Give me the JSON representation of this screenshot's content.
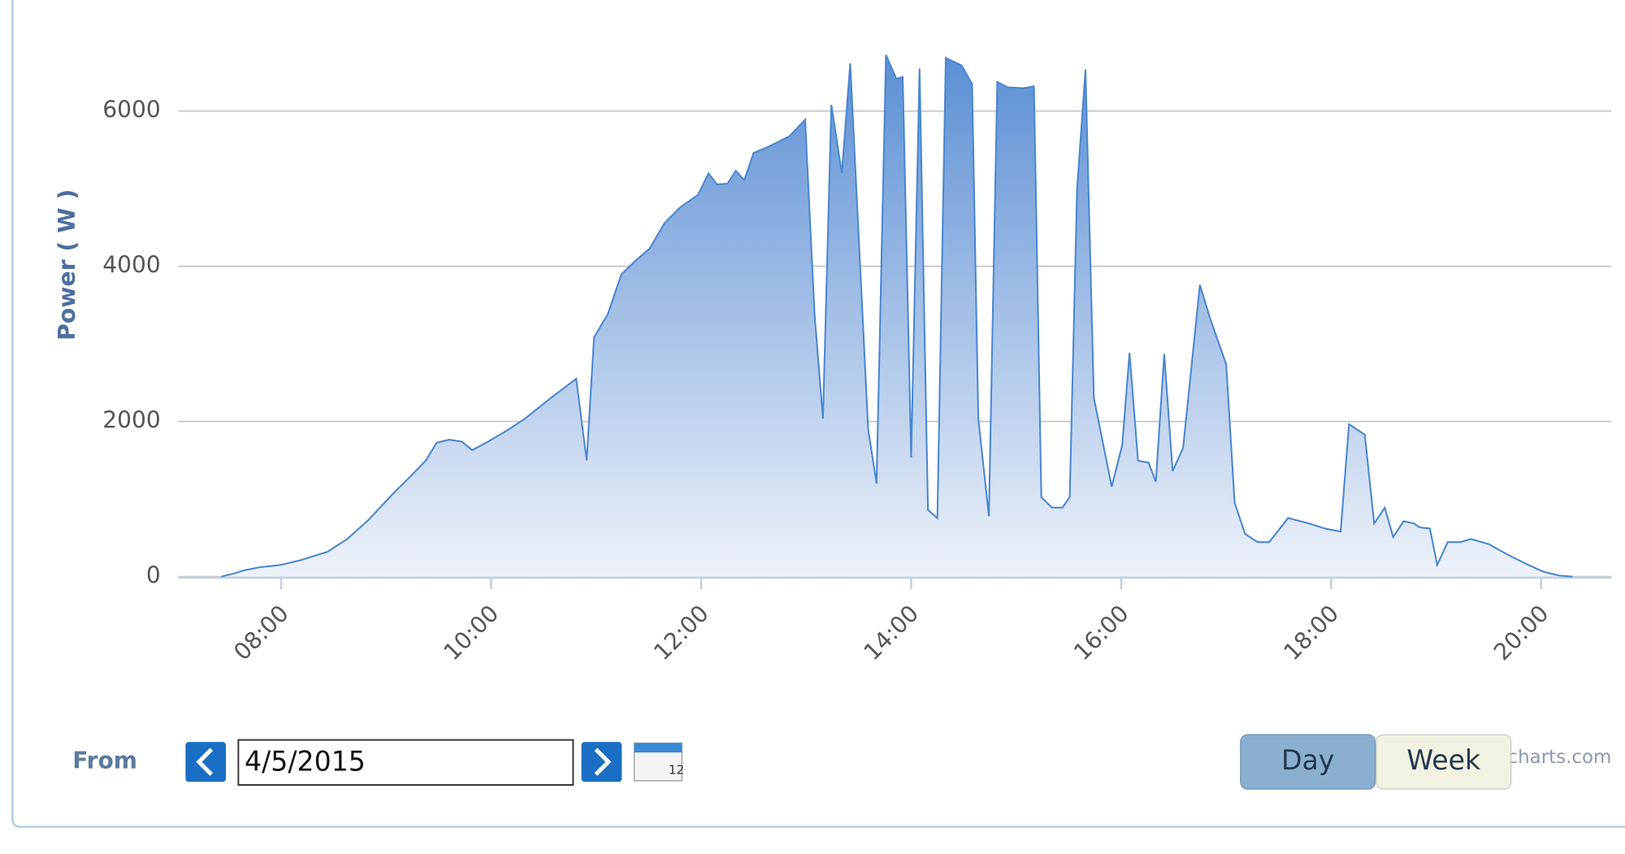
{
  "chart_data": {
    "type": "area",
    "ylabel": "Power ( W )",
    "x": [
      7.43,
      7.55,
      7.64,
      7.79,
      7.99,
      8.19,
      8.44,
      8.63,
      8.83,
      9.08,
      9.23,
      9.38,
      9.48,
      9.6,
      9.72,
      9.82,
      9.97,
      10.17,
      10.32,
      10.57,
      10.81,
      10.91,
      10.98,
      11.11,
      11.24,
      11.36,
      11.51,
      11.65,
      11.8,
      11.97,
      12.07,
      12.15,
      12.25,
      12.33,
      12.41,
      12.5,
      12.64,
      12.84,
      12.99,
      13.08,
      13.16,
      13.24,
      13.34,
      13.42,
      13.59,
      13.67,
      13.76,
      13.86,
      13.92,
      14.0,
      14.08,
      14.16,
      14.25,
      14.33,
      14.48,
      14.58,
      14.64,
      14.74,
      14.82,
      14.92,
      15.07,
      15.17,
      15.24,
      15.34,
      15.44,
      15.51,
      15.58,
      15.66,
      15.74,
      15.91,
      16.01,
      16.08,
      16.16,
      16.26,
      16.33,
      16.41,
      16.49,
      16.59,
      16.75,
      16.85,
      17.0,
      17.08,
      17.18,
      17.3,
      17.41,
      17.59,
      17.79,
      17.94,
      18.09,
      18.17,
      18.32,
      18.41,
      18.51,
      18.59,
      18.69,
      18.79,
      18.84,
      18.94,
      19.01,
      19.11,
      19.23,
      19.33,
      19.5,
      19.68,
      19.88,
      20.02,
      20.17,
      20.3
    ],
    "values": [
      0,
      40,
      80,
      120,
      150,
      215,
      320,
      485,
      730,
      1090,
      1290,
      1500,
      1725,
      1765,
      1740,
      1630,
      1740,
      1900,
      2035,
      2305,
      2550,
      1500,
      3085,
      3380,
      3895,
      4055,
      4230,
      4555,
      4760,
      4920,
      5200,
      5055,
      5065,
      5230,
      5110,
      5460,
      5540,
      5675,
      5890,
      3380,
      2035,
      6080,
      5200,
      6615,
      1900,
      1200,
      6725,
      6415,
      6440,
      1535,
      6550,
      860,
      755,
      6685,
      6590,
      6350,
      2035,
      780,
      6375,
      6305,
      6295,
      6320,
      1025,
      890,
      890,
      1025,
      5000,
      6535,
      2305,
      1160,
      1700,
      2885,
      1495,
      1470,
      1225,
      2870,
      1360,
      1660,
      3760,
      3315,
      2735,
      955,
      550,
      445,
      445,
      755,
      685,
      620,
      580,
      1965,
      1830,
      685,
      890,
      510,
      715,
      685,
      635,
      620,
      150,
      445,
      445,
      485,
      420,
      285,
      150,
      65,
      15,
      0
    ],
    "color": "#4a86d0",
    "xlim": [
      7.02,
      20.67
    ],
    "xticks": [
      {
        "value": 8,
        "label": "08:00"
      },
      {
        "value": 10,
        "label": "10:00"
      },
      {
        "value": 12,
        "label": "12:00"
      },
      {
        "value": 14,
        "label": "14:00"
      },
      {
        "value": 16,
        "label": "16:00"
      },
      {
        "value": 18,
        "label": "18:00"
      },
      {
        "value": 20,
        "label": "20:00"
      }
    ],
    "ylim": [
      0,
      7000
    ],
    "yticks": [
      0,
      2000,
      4000,
      6000
    ],
    "grid": true
  },
  "controls": {
    "from_label": "From",
    "date": "4/5/2015",
    "buttons": [
      "Day",
      "Week"
    ],
    "credit": "charts.com"
  }
}
